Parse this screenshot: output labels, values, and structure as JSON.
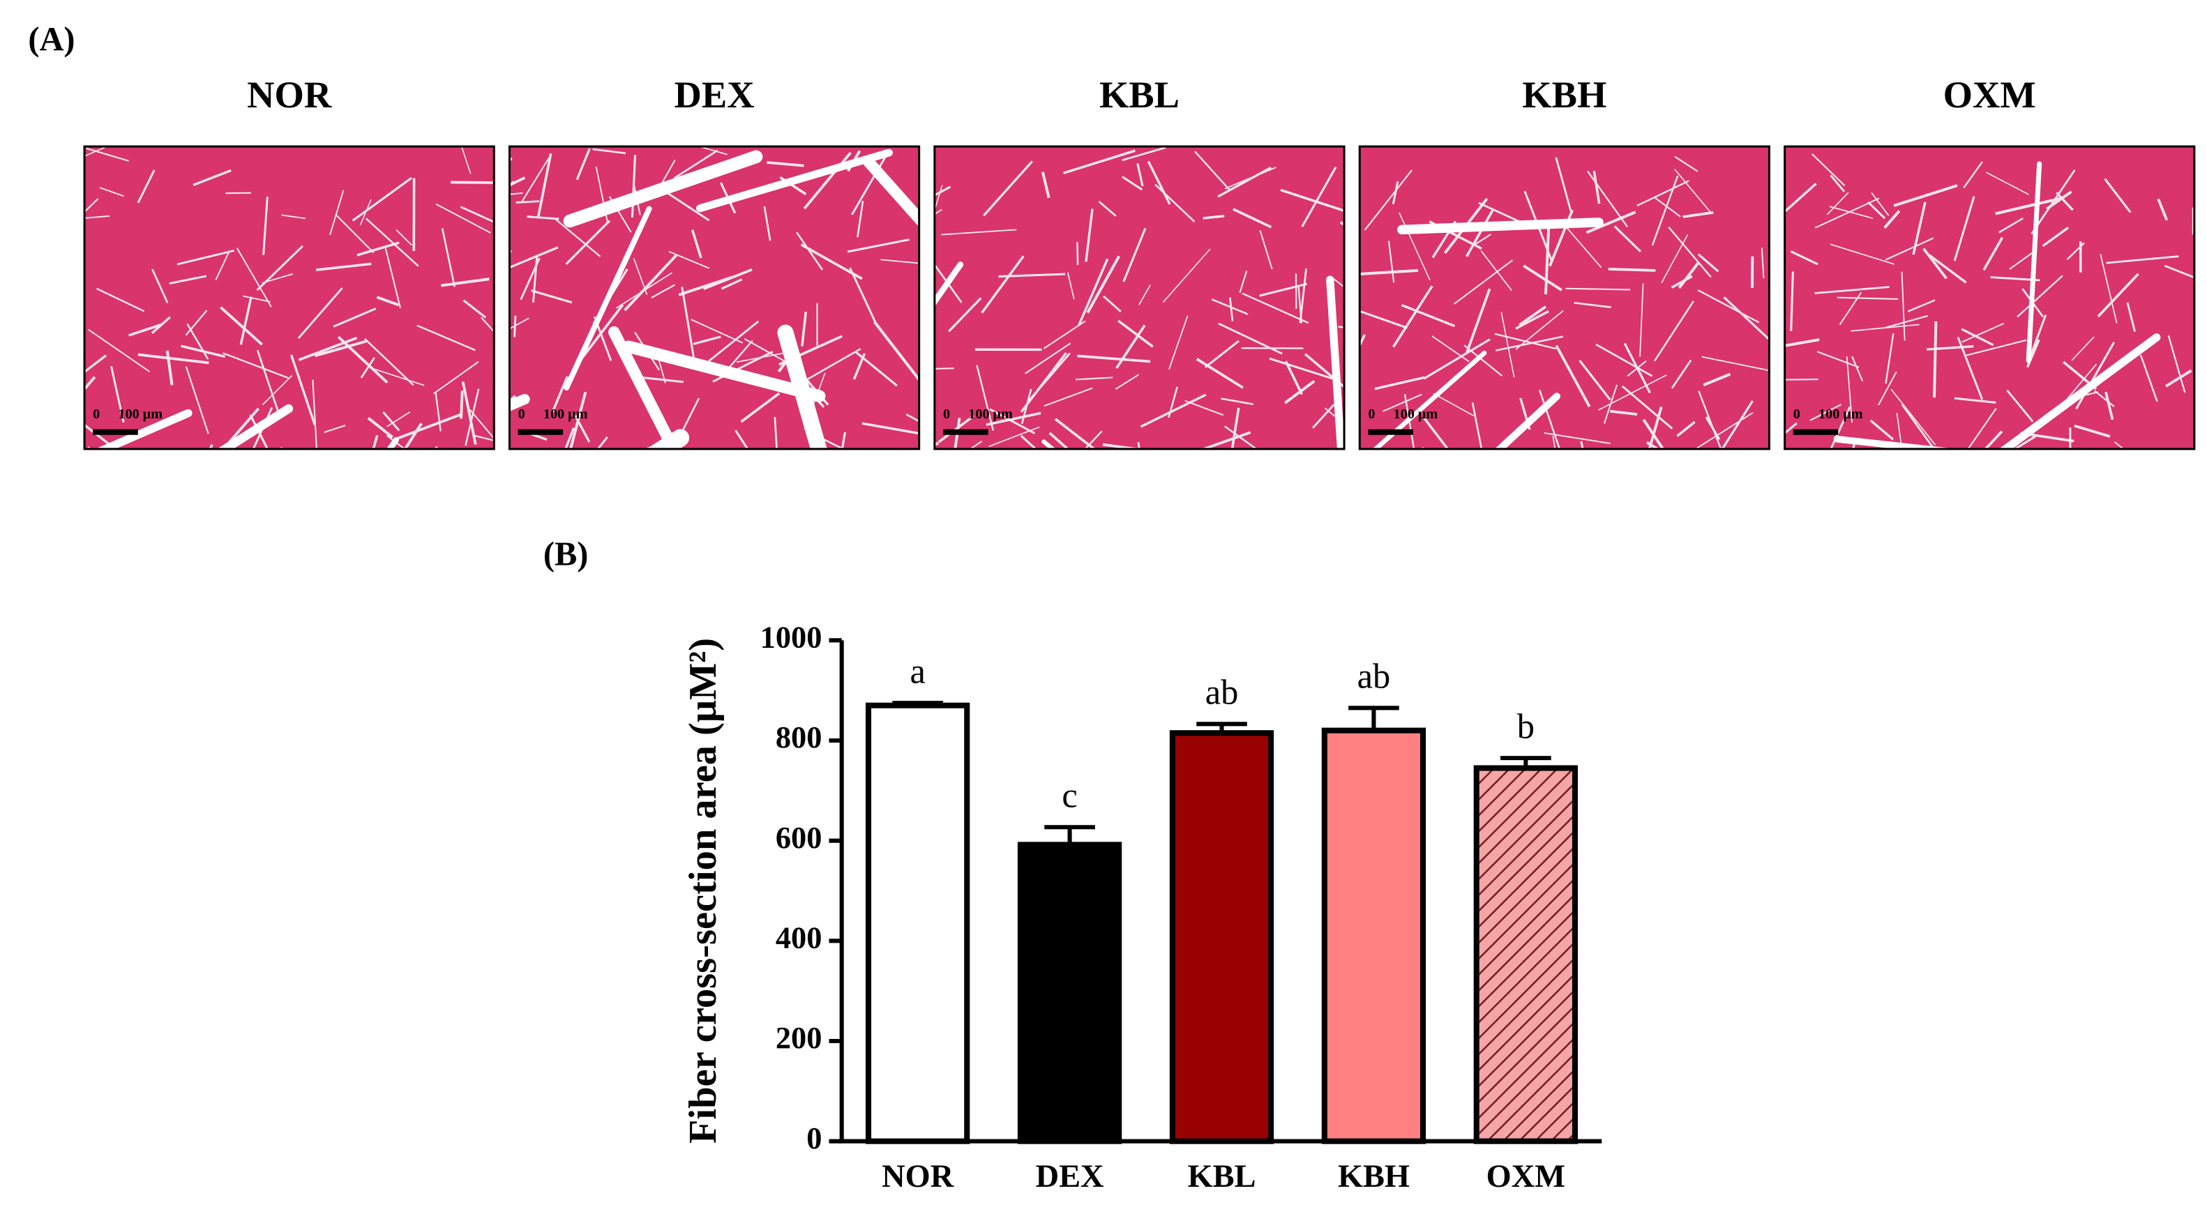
{
  "panel_a": {
    "label": "(A)",
    "images": [
      {
        "title": "NOR",
        "scale_zero": "0",
        "scale_label": "100 μm"
      },
      {
        "title": "DEX",
        "scale_zero": "0",
        "scale_label": "100 μm"
      },
      {
        "title": "KBL",
        "scale_zero": "0",
        "scale_label": "100 μm"
      },
      {
        "title": "KBH",
        "scale_zero": "0",
        "scale_label": "100 μm"
      },
      {
        "title": "OXM",
        "scale_zero": "0",
        "scale_label": "100 μm"
      }
    ]
  },
  "chart_data": {
    "type": "bar",
    "panel_label": "(B)",
    "y_label": "Fiber cross-section area (μM²)",
    "categories": [
      "NOR",
      "DEX",
      "KBL",
      "KBH",
      "OXM"
    ],
    "values": [
      870,
      592,
      815,
      820,
      745
    ],
    "errors": [
      5,
      35,
      18,
      45,
      20
    ],
    "letters": [
      "a",
      "c",
      "ab",
      "ab",
      "b"
    ],
    "colors": [
      "#ffffff",
      "#000000",
      "#990000",
      "#ff8080",
      "#f4a6a6"
    ],
    "hatch": [
      false,
      false,
      false,
      false,
      true
    ],
    "ylim": [
      0,
      1000
    ],
    "yticks": [
      0,
      200,
      400,
      600,
      800,
      1000
    ]
  }
}
